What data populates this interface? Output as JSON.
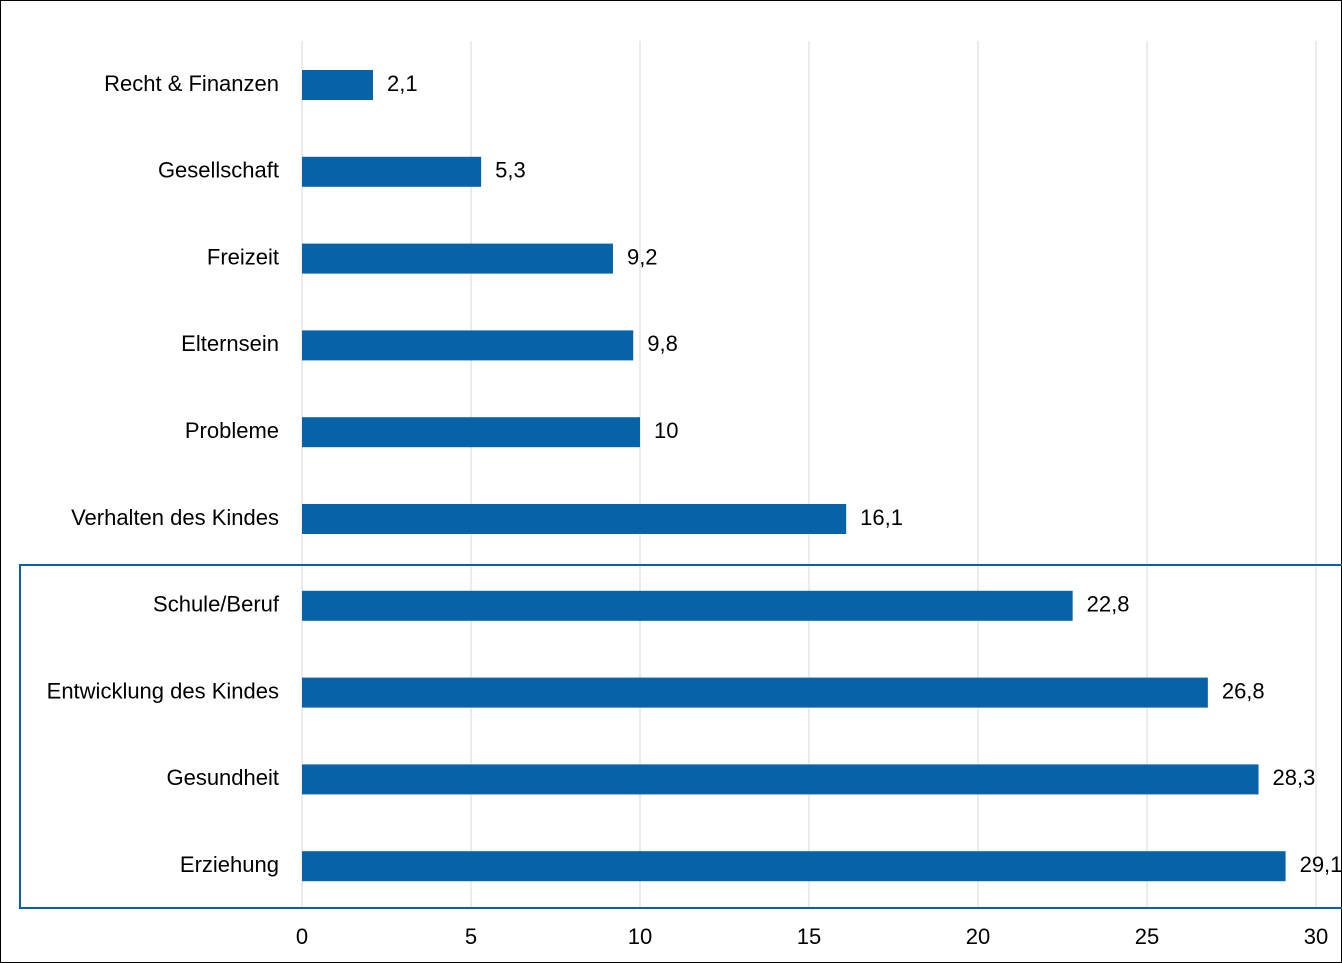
{
  "chart_data": {
    "type": "bar",
    "orientation": "horizontal",
    "categories": [
      "Recht & Finanzen",
      "Gesellschaft",
      "Freizeit",
      "Elternsein",
      "Probleme",
      "Verhalten des Kindes",
      "Schule/Beruf",
      "Entwicklung des Kindes",
      "Gesundheit",
      "Erziehung"
    ],
    "values": [
      2.1,
      5.3,
      9.2,
      9.8,
      10,
      16.1,
      22.8,
      26.8,
      28.3,
      29.1
    ],
    "value_labels": [
      "2,1",
      "5,3",
      "9,2",
      "9,8",
      "10",
      "16,1",
      "22,8",
      "26,8",
      "28,3",
      "29,1"
    ],
    "color": "#0862a8",
    "xlim": [
      0,
      30
    ],
    "xticks": [
      0,
      5,
      10,
      15,
      20,
      25,
      30
    ],
    "grid": true
  }
}
